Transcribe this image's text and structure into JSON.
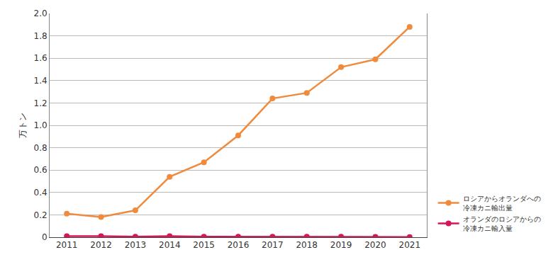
{
  "chart_data": {
    "type": "line",
    "y_label": "万トン",
    "categories": [
      "2011",
      "2012",
      "2013",
      "2014",
      "2015",
      "2016",
      "2017",
      "2018",
      "2019",
      "2020",
      "2021"
    ],
    "series": [
      {
        "name": "ロシアからオランダへの\n冷凍カニ輸出量",
        "color": "#f08a3c",
        "marker": "circle",
        "line_style": "solid",
        "values": [
          0.21,
          0.18,
          0.24,
          0.54,
          0.67,
          0.91,
          1.24,
          1.29,
          1.52,
          1.59,
          1.88
        ]
      },
      {
        "name": "オランダのロシアからの\n冷凍カニ輸入量",
        "color": "#d6155a",
        "marker": "circle",
        "line_style": "solid",
        "values": [
          0.01,
          0.01,
          0.005,
          0.01,
          0.005,
          0.005,
          0.005,
          0.005,
          0.005,
          0.003,
          0.002
        ]
      }
    ],
    "ylim": [
      0,
      2
    ],
    "yticks": [
      0,
      0.2,
      0.4,
      0.6,
      0.8,
      {
        "value": 1,
        "label": "1.0"
      },
      1.2,
      1.4,
      1.6,
      1.8,
      {
        "value": 2,
        "label": "2.0"
      }
    ],
    "grid": true,
    "legend": "lower right"
  }
}
